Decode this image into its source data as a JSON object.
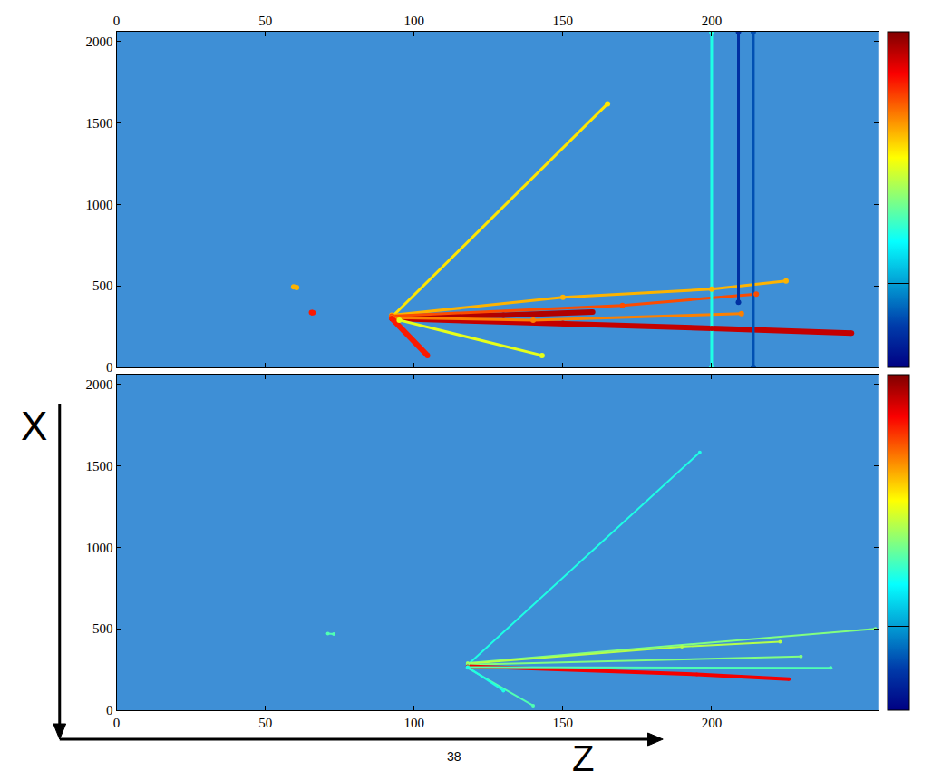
{
  "chart_data": [
    {
      "type": "scatter",
      "xlim": [
        0,
        256
      ],
      "ylim": [
        0,
        2060
      ],
      "xticks": [
        0,
        50,
        100,
        150,
        200
      ],
      "yticks": [
        0,
        500,
        1000,
        1500,
        2000
      ],
      "color_lim": [
        0,
        100
      ],
      "color_ticks": [
        25
      ],
      "series": [
        {
          "x": [
            92.5,
            165
          ],
          "values": [
            309,
            1618
          ],
          "intensity": 65
        },
        {
          "x": [
            92.5,
            130,
            160
          ],
          "values": [
            309,
            320,
            340
          ],
          "intensity": 95
        },
        {
          "x": [
            92.5,
            150,
            200,
            247
          ],
          "values": [
            300,
            270,
            240,
            210
          ],
          "intensity": 93
        },
        {
          "x": [
            92.5,
            150,
            200,
            225
          ],
          "values": [
            320,
            430,
            480,
            530
          ],
          "intensity": 70
        },
        {
          "x": [
            92.5,
            170,
            215
          ],
          "values": [
            315,
            380,
            450
          ],
          "intensity": 80
        },
        {
          "x": [
            92.5,
            140,
            210
          ],
          "values": [
            305,
            290,
            330
          ],
          "intensity": 75
        },
        {
          "x": [
            92.5,
            104.5
          ],
          "values": [
            300,
            73
          ],
          "intensity": 85
        },
        {
          "x": [
            95,
            143
          ],
          "values": [
            290,
            73
          ],
          "intensity": 60
        },
        {
          "x": [
            200,
            200
          ],
          "values": [
            0,
            2060
          ],
          "intensity": 40
        },
        {
          "x": [
            209,
            209
          ],
          "values": [
            400,
            2060
          ],
          "intensity": 10
        },
        {
          "x": [
            214,
            214
          ],
          "values": [
            0,
            2060
          ],
          "intensity": 15
        },
        {
          "x": [
            59.5,
            60.5
          ],
          "values": [
            494,
            490
          ],
          "intensity": 70
        },
        {
          "x": [
            65.5,
            66
          ],
          "values": [
            337,
            335
          ],
          "intensity": 85
        }
      ]
    },
    {
      "type": "scatter",
      "xlim": [
        0,
        256
      ],
      "ylim": [
        0,
        2060
      ],
      "xticks": [
        0,
        50,
        100,
        150,
        200
      ],
      "yticks": [
        0,
        500,
        1000,
        1500,
        2000
      ],
      "color_lim": [
        0,
        100
      ],
      "color_ticks": [
        25
      ],
      "series": [
        {
          "x": [
            118,
            196
          ],
          "values": [
            278,
            1583
          ],
          "intensity": 40
        },
        {
          "x": [
            118,
            255
          ],
          "values": [
            290,
            500
          ],
          "intensity": 50
        },
        {
          "x": [
            118,
            190,
            223
          ],
          "values": [
            285,
            390,
            420
          ],
          "intensity": 55
        },
        {
          "x": [
            118,
            230
          ],
          "values": [
            280,
            330
          ],
          "intensity": 50
        },
        {
          "x": [
            118,
            195,
            226
          ],
          "values": [
            270,
            220,
            190
          ],
          "intensity": 88
        },
        {
          "x": [
            118,
            240
          ],
          "values": [
            265,
            260
          ],
          "intensity": 45
        },
        {
          "x": [
            118,
            140
          ],
          "values": [
            260,
            28
          ],
          "intensity": 45
        },
        {
          "x": [
            118,
            130
          ],
          "values": [
            265,
            120
          ],
          "intensity": 40
        },
        {
          "x": [
            71,
            73
          ],
          "values": [
            470,
            468
          ],
          "intensity": 45
        }
      ]
    }
  ],
  "labels": {
    "vertical_axis": "X",
    "horizontal_axis": "Z",
    "page_number": "38"
  }
}
